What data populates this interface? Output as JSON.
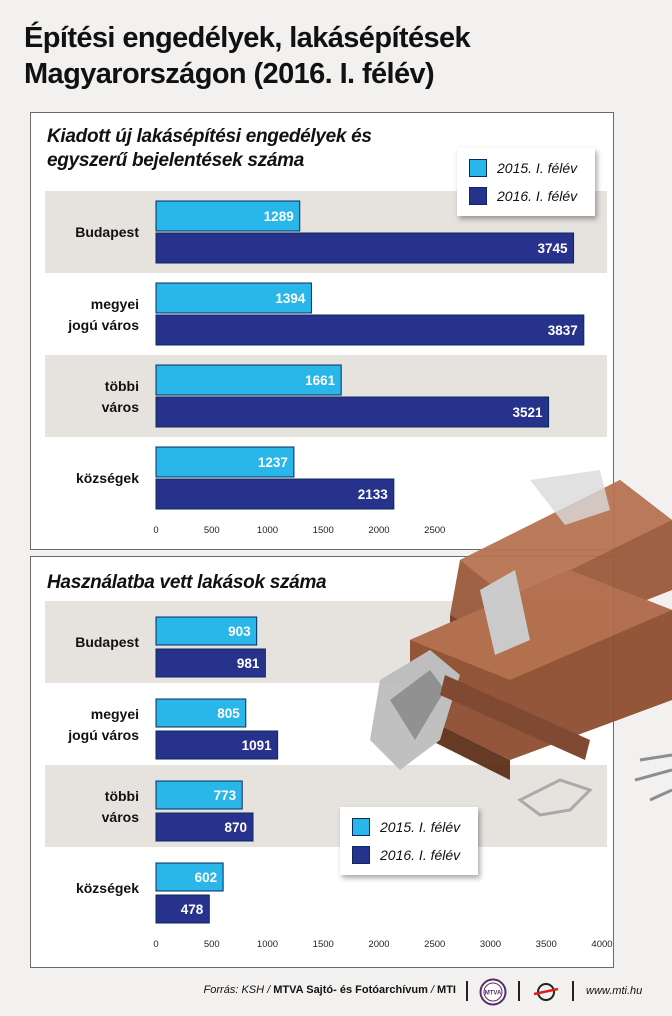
{
  "title_line1": "Építési engedélyek, lakásépítések",
  "title_line2": "Magyarországon (2016. I. félév)",
  "colors": {
    "s2015": "#29b6e8",
    "s2016": "#27328c",
    "band": "#e6e3df"
  },
  "legend": {
    "s2015": "2015. I. félév",
    "s2016": "2016. I. félév"
  },
  "chart_data": [
    {
      "type": "bar",
      "orientation": "horizontal",
      "title_line1": "Kiadott új lakásépítési engedélyek és",
      "title_line2": "egyszerű bejelentések száma",
      "categories": [
        [
          "Budapest"
        ],
        [
          "megyei",
          "jogú város"
        ],
        [
          "többi",
          "város"
        ],
        [
          "községek"
        ]
      ],
      "series": [
        {
          "name": "2015. I. félév",
          "values": [
            1289,
            1394,
            1661,
            1237
          ]
        },
        {
          "name": "2016. I. félév",
          "values": [
            3745,
            3837,
            3521,
            2133
          ]
        }
      ],
      "xlim": [
        0,
        4000
      ],
      "ticks": [
        "0",
        "500",
        "1000",
        "1500",
        "2000",
        "2500"
      ],
      "tick_values": [
        0,
        500,
        1000,
        1500,
        2000,
        2500
      ],
      "legend_position": "top-right"
    },
    {
      "type": "bar",
      "orientation": "horizontal",
      "title_line1": "Használatba vett lakások száma",
      "title_line2": "",
      "categories": [
        [
          "Budapest"
        ],
        [
          "megyei",
          "jogú város"
        ],
        [
          "többi",
          "város"
        ],
        [
          "községek"
        ]
      ],
      "series": [
        {
          "name": "2015. I. félév",
          "values": [
            903,
            805,
            773,
            602
          ]
        },
        {
          "name": "2016. I. félév",
          "values": [
            981,
            1091,
            870,
            478
          ]
        }
      ],
      "xlim": [
        0,
        4000
      ],
      "ticks": [
        "0",
        "500",
        "1000",
        "1500",
        "2000",
        "2500",
        "3000",
        "3500",
        "4000"
      ],
      "tick_values": [
        0,
        500,
        1000,
        1500,
        2000,
        2500,
        3000,
        3500,
        4000
      ],
      "legend_position": "bottom-right"
    }
  ],
  "footer": {
    "source_prefix": "Forrás: KSH / ",
    "source_org": "MTVA Sajtó- és Fotóarchívum",
    "source_sep": " / ",
    "source_mti": "MTI",
    "logo_text": "MTVA",
    "website": "www.mti.hu"
  }
}
